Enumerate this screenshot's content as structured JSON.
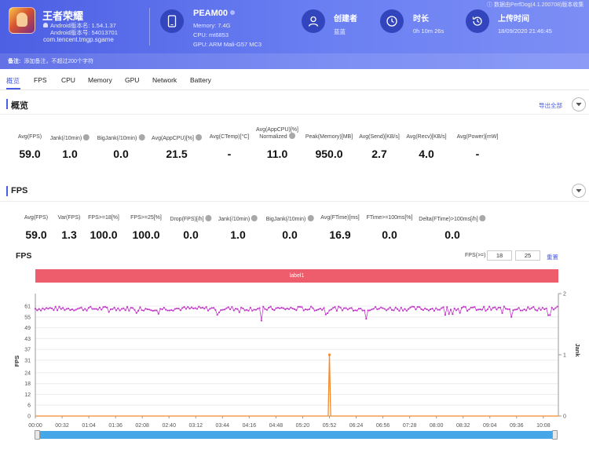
{
  "header": {
    "app_name": "王者荣耀",
    "android_version": "Android版本名: 1.54.1.37",
    "android_code": "Android版本号: 54013701",
    "package": "com.tencent.tmgp.sgame",
    "device_name": "PEAM00",
    "memory": "Memory: 7.4G",
    "cpu": "CPU: mt6853",
    "gpu": "GPU: ARM Mali-G57 MC3",
    "creator_title": "创建者",
    "creator_value": "蓝蓝",
    "duration_title": "时长",
    "duration_value": "0h 10m 26s",
    "upload_title": "上传时间",
    "upload_value": "18/09/2020 21:46:45",
    "perfdog": "ⓘ 数据由PerfDog(4.1.200708)版本收集",
    "note_label": "备注:",
    "note_placeholder": "添加备注，不超过200个字符"
  },
  "tabs": [
    "概览",
    "FPS",
    "CPU",
    "Memory",
    "GPU",
    "Network",
    "Battery"
  ],
  "overview": {
    "title": "概览",
    "export": "导出全部",
    "metrics": [
      {
        "label": "Avg(FPS)",
        "value": "59.0",
        "help": false
      },
      {
        "label": "Jank(/10min)",
        "value": "1.0",
        "help": true
      },
      {
        "label": "BigJank(/10min)",
        "value": "0.0",
        "help": true
      },
      {
        "label": "Avg(AppCPU)[%]",
        "value": "21.5",
        "help": true
      },
      {
        "label": "Avg(CTemp)[°C]",
        "value": "-",
        "help": false
      },
      {
        "label": "Avg(AppCPU)[%]",
        "label2": "Normalized",
        "value": "11.0",
        "help": true
      },
      {
        "label": "Peak(Memory)[MB]",
        "value": "950.0",
        "help": false
      },
      {
        "label": "Avg(Send)[KB/s]",
        "value": "2.7",
        "help": false
      },
      {
        "label": "Avg(Recv)[KB/s]",
        "value": "4.0",
        "help": false
      },
      {
        "label": "Avg(Power)[mW]",
        "value": "-",
        "help": false
      }
    ]
  },
  "fps_section": {
    "title": "FPS",
    "metrics": [
      {
        "label": "Avg(FPS)",
        "value": "59.0",
        "help": false
      },
      {
        "label": "Var(FPS)",
        "value": "1.3",
        "help": false
      },
      {
        "label": "FPS>=18[%]",
        "value": "100.0",
        "help": false
      },
      {
        "label": "FPS>=25[%]",
        "value": "100.0",
        "help": false
      },
      {
        "label": "Drop(FPS)[/h]",
        "value": "0.0",
        "help": true
      },
      {
        "label": "Jank(/10min)",
        "value": "1.0",
        "help": true
      },
      {
        "label": "BigJank(/10min)",
        "value": "0.0",
        "help": true
      },
      {
        "label": "Avg(FTime)[ms]",
        "value": "16.9",
        "help": false
      },
      {
        "label": "FTime>=100ms[%]",
        "value": "0.0",
        "help": false
      },
      {
        "label": "Delta(FTime)>100ms[/h]",
        "value": "0.0",
        "help": true
      }
    ],
    "chart_title": "FPS",
    "threshold_label": "FPS(>=)",
    "threshold_1": "18",
    "threshold_2": "25",
    "reset": "重置",
    "band_label": "label1"
  },
  "chart_data": {
    "type": "line",
    "ylabel": "FPS",
    "y2label": "Jank",
    "ylim": [
      0,
      61
    ],
    "yticks": [
      0,
      6,
      12,
      18,
      24,
      31,
      37,
      43,
      49,
      55,
      61
    ],
    "y2lim": [
      0,
      2
    ],
    "y2ticks": [
      0,
      1,
      2
    ],
    "xticks": [
      "00:00",
      "00:32",
      "01:04",
      "01:36",
      "02:08",
      "02:40",
      "03:12",
      "03:44",
      "04:16",
      "04:48",
      "05:20",
      "05:52",
      "06:24",
      "06:56",
      "07:28",
      "08:00",
      "08:32",
      "09:04",
      "09:36",
      "10:08"
    ],
    "x_range_seconds": [
      0,
      626
    ],
    "series": [
      {
        "name": "FPS",
        "color": "#c23bc9",
        "typical": 59,
        "min_dips": [
          {
            "t": 270,
            "value": 53
          },
          {
            "t": 395,
            "value": 54
          },
          {
            "t": 570,
            "value": 55
          },
          {
            "t": 615,
            "value": 56
          }
        ]
      },
      {
        "name": "Jank",
        "color": "#f28a2e",
        "spikes": [
          {
            "t": 352,
            "value": 1
          }
        ]
      }
    ],
    "grid": true
  },
  "colors": {
    "accent": "#4a5de6",
    "header_start": "#4d5fe3",
    "band": "#ee5d6c",
    "fps_line": "#c23bc9",
    "jank_line": "#f28a2e",
    "scrollbar": "#45a7e8"
  }
}
